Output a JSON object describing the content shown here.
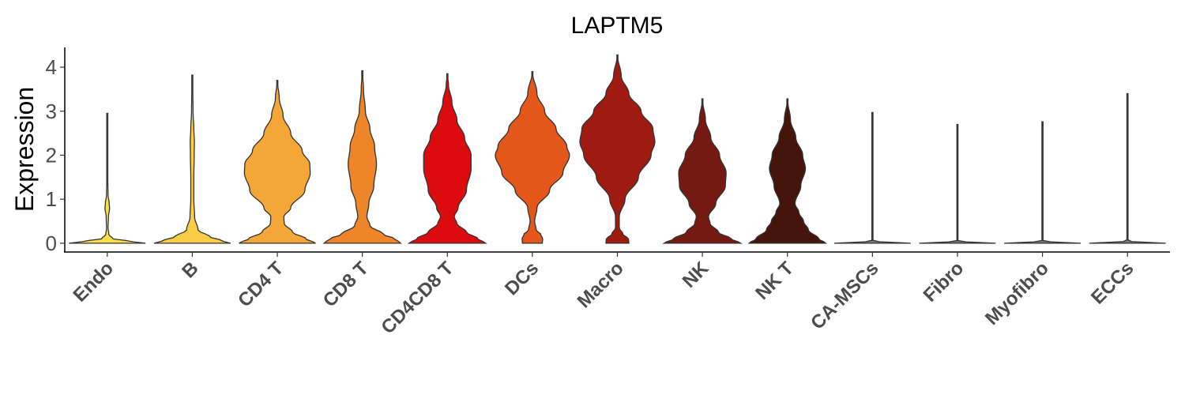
{
  "chart_data": {
    "type": "violin",
    "title": "LAPTM5",
    "ylabel": "Expression",
    "xlabel": "",
    "ylim": [
      -0.2,
      4.45
    ],
    "yticks": [
      0,
      1,
      2,
      3,
      4
    ],
    "grid": false,
    "legend": "none",
    "categories": [
      "Endo",
      "B",
      "CD4 T",
      "CD8 T",
      "CD4CD8 T",
      "DCs",
      "Macro",
      "NK",
      "NK T",
      "CA-MSCs",
      "Fibro",
      "Myofibro",
      "ECCs"
    ],
    "series": [
      {
        "category": "Endo",
        "color": "#f7e04a",
        "max": 2.95,
        "profile": [
          [
            0,
            1.0
          ],
          [
            0.05,
            0.55
          ],
          [
            0.1,
            0.15
          ],
          [
            0.2,
            0.04
          ],
          [
            0.35,
            0.02
          ],
          [
            0.6,
            0.03
          ],
          [
            0.8,
            0.06
          ],
          [
            0.9,
            0.05
          ],
          [
            1.1,
            0.02
          ],
          [
            1.5,
            0.01
          ],
          [
            2.95,
            0.0
          ]
        ]
      },
      {
        "category": "B",
        "color": "#f9cd45",
        "max": 3.82,
        "profile": [
          [
            0,
            1.0
          ],
          [
            0.05,
            0.8
          ],
          [
            0.15,
            0.45
          ],
          [
            0.3,
            0.15
          ],
          [
            0.6,
            0.06
          ],
          [
            1.0,
            0.04
          ],
          [
            1.5,
            0.04
          ],
          [
            2.0,
            0.05
          ],
          [
            2.3,
            0.055
          ],
          [
            2.6,
            0.04
          ],
          [
            3.0,
            0.02
          ],
          [
            3.82,
            0.0
          ]
        ]
      },
      {
        "category": "CD4 T",
        "color": "#f4a736",
        "max": 3.7,
        "profile": [
          [
            0,
            1.0
          ],
          [
            0.1,
            0.75
          ],
          [
            0.25,
            0.4
          ],
          [
            0.45,
            0.18
          ],
          [
            0.6,
            0.17
          ],
          [
            0.8,
            0.35
          ],
          [
            1.2,
            0.72
          ],
          [
            1.6,
            0.86
          ],
          [
            1.8,
            0.85
          ],
          [
            2.1,
            0.65
          ],
          [
            2.5,
            0.35
          ],
          [
            2.9,
            0.15
          ],
          [
            3.3,
            0.05
          ],
          [
            3.7,
            0.0
          ]
        ]
      },
      {
        "category": "CD8 T",
        "color": "#ee8529",
        "max": 3.92,
        "profile": [
          [
            0,
            1.0
          ],
          [
            0.1,
            0.85
          ],
          [
            0.2,
            0.55
          ],
          [
            0.4,
            0.2
          ],
          [
            0.6,
            0.12
          ],
          [
            0.9,
            0.17
          ],
          [
            1.3,
            0.3
          ],
          [
            1.8,
            0.37
          ],
          [
            2.2,
            0.32
          ],
          [
            2.6,
            0.2
          ],
          [
            3.0,
            0.08
          ],
          [
            3.5,
            0.03
          ],
          [
            3.92,
            0.0
          ]
        ]
      },
      {
        "category": "CD4CD8 T",
        "color": "#dc0b0e",
        "max": 3.85,
        "profile": [
          [
            0,
            1.0
          ],
          [
            0.1,
            0.8
          ],
          [
            0.25,
            0.5
          ],
          [
            0.45,
            0.25
          ],
          [
            0.6,
            0.18
          ],
          [
            0.8,
            0.28
          ],
          [
            1.2,
            0.5
          ],
          [
            1.7,
            0.62
          ],
          [
            2.0,
            0.62
          ],
          [
            2.4,
            0.45
          ],
          [
            2.8,
            0.25
          ],
          [
            3.2,
            0.12
          ],
          [
            3.6,
            0.03
          ],
          [
            3.85,
            0.0
          ]
        ]
      },
      {
        "category": "DCs",
        "color": "#e3571b",
        "max": 3.9,
        "profile": [
          [
            0,
            0.26
          ],
          [
            0.1,
            0.27
          ],
          [
            0.2,
            0.22
          ],
          [
            0.3,
            0.1
          ],
          [
            0.5,
            0.06
          ],
          [
            0.8,
            0.12
          ],
          [
            1.2,
            0.45
          ],
          [
            1.6,
            0.8
          ],
          [
            2.0,
            0.97
          ],
          [
            2.2,
            0.9
          ],
          [
            2.6,
            0.62
          ],
          [
            3.0,
            0.32
          ],
          [
            3.4,
            0.12
          ],
          [
            3.9,
            0.0
          ]
        ]
      },
      {
        "category": "Macro",
        "color": "#9f1a10",
        "max": 4.28,
        "profile": [
          [
            0,
            0.3
          ],
          [
            0.1,
            0.29
          ],
          [
            0.2,
            0.15
          ],
          [
            0.35,
            0.05
          ],
          [
            0.6,
            0.05
          ],
          [
            1.0,
            0.2
          ],
          [
            1.5,
            0.55
          ],
          [
            2.0,
            0.88
          ],
          [
            2.3,
            0.98
          ],
          [
            2.6,
            0.93
          ],
          [
            3.0,
            0.62
          ],
          [
            3.4,
            0.3
          ],
          [
            3.8,
            0.1
          ],
          [
            4.28,
            0.0
          ]
        ]
      },
      {
        "category": "NK",
        "color": "#741a12",
        "max": 3.28,
        "profile": [
          [
            0,
            1.0
          ],
          [
            0.1,
            0.75
          ],
          [
            0.25,
            0.42
          ],
          [
            0.45,
            0.2
          ],
          [
            0.6,
            0.16
          ],
          [
            0.9,
            0.35
          ],
          [
            1.3,
            0.6
          ],
          [
            1.6,
            0.62
          ],
          [
            2.0,
            0.45
          ],
          [
            2.4,
            0.22
          ],
          [
            2.8,
            0.08
          ],
          [
            3.28,
            0.0
          ]
        ]
      },
      {
        "category": "NK T",
        "color": "#45150c",
        "max": 3.28,
        "profile": [
          [
            0,
            1.0
          ],
          [
            0.1,
            0.82
          ],
          [
            0.3,
            0.55
          ],
          [
            0.5,
            0.42
          ],
          [
            0.7,
            0.3
          ],
          [
            0.9,
            0.2
          ],
          [
            1.3,
            0.35
          ],
          [
            1.7,
            0.47
          ],
          [
            2.0,
            0.4
          ],
          [
            2.4,
            0.22
          ],
          [
            2.8,
            0.08
          ],
          [
            3.28,
            0.0
          ]
        ]
      },
      {
        "category": "CA-MSCs",
        "color": "#7a7a7a",
        "max": 2.97,
        "profile": [
          [
            0,
            1.0
          ],
          [
            0.02,
            0.3
          ],
          [
            0.05,
            0.006
          ],
          [
            2.97,
            0.0
          ]
        ]
      },
      {
        "category": "Fibro",
        "color": "#7a7a7a",
        "max": 2.7,
        "profile": [
          [
            0,
            1.0
          ],
          [
            0.02,
            0.3
          ],
          [
            0.05,
            0.006
          ],
          [
            2.7,
            0.0
          ]
        ]
      },
      {
        "category": "Myofibro",
        "color": "#7a7a7a",
        "max": 2.76,
        "profile": [
          [
            0,
            1.0
          ],
          [
            0.02,
            0.3
          ],
          [
            0.05,
            0.006
          ],
          [
            2.76,
            0.0
          ]
        ]
      },
      {
        "category": "ECCs",
        "color": "#7a7a7a",
        "max": 3.4,
        "profile": [
          [
            0,
            1.0
          ],
          [
            0.02,
            0.3
          ],
          [
            0.05,
            0.006
          ],
          [
            3.4,
            0.0
          ]
        ]
      }
    ]
  }
}
